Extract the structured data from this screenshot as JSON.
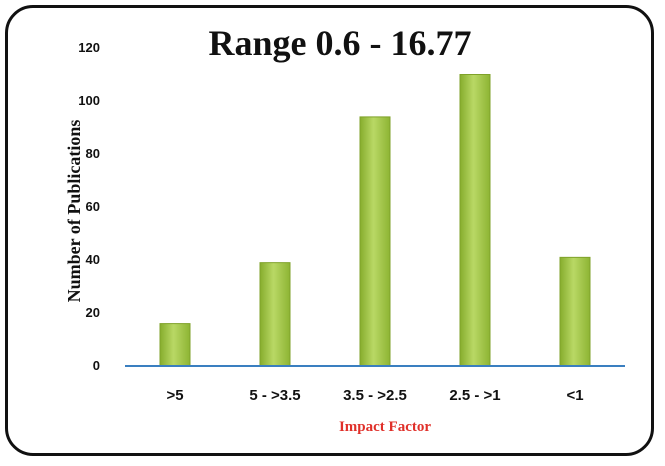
{
  "chart_data": {
    "type": "bar",
    "title": "Range 0.6 - 16.77",
    "xlabel": "Impact Factor",
    "ylabel": "Number of Publications",
    "categories": [
      ">5",
      "5 - >3.5",
      "3.5 - >2.5",
      "2.5 - >1",
      "<1"
    ],
    "values": [
      16,
      39,
      94,
      110,
      41
    ],
    "ylim": [
      0,
      120
    ],
    "yticks": [
      0,
      20,
      40,
      60,
      80,
      100,
      120
    ],
    "grid": false,
    "legend": "none",
    "bar_color": "#a8cc4a",
    "bar_edge_color": "#7fa22a",
    "axis_color": "#3a7fc0",
    "xlabel_color": "#e0302a"
  }
}
